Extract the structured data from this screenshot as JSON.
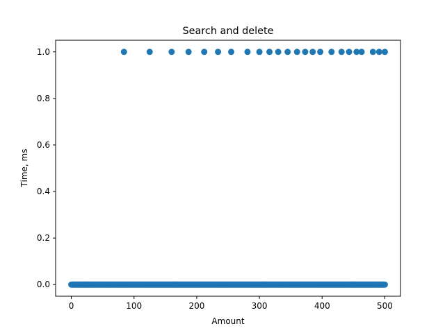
{
  "chart_data": {
    "type": "scatter",
    "title": "Search and delete",
    "xlabel": "Amount",
    "ylabel": "Time, ms",
    "xlim": [
      -25,
      525
    ],
    "ylim": [
      -0.05,
      1.05
    ],
    "xticks": [
      0,
      100,
      200,
      300,
      400,
      500
    ],
    "yticks": [
      0.0,
      0.2,
      0.4,
      0.6,
      0.8,
      1.0
    ],
    "xtick_labels": [
      "0",
      "100",
      "200",
      "300",
      "400",
      "500"
    ],
    "ytick_labels": [
      "0.0",
      "0.2",
      "0.4",
      "0.6",
      "0.8",
      "1.0"
    ],
    "grid": false,
    "marker_color": "#1f77b4",
    "series": [
      {
        "points_at_one": [
          84,
          125,
          160,
          187,
          212,
          234,
          255,
          281,
          300,
          316,
          330,
          345,
          360,
          373,
          385,
          397,
          415,
          431,
          443,
          455,
          463,
          481,
          491,
          500
        ],
        "zero_range": {
          "start": 0,
          "end": 500,
          "step": 1,
          "y": 0.0
        }
      }
    ]
  }
}
